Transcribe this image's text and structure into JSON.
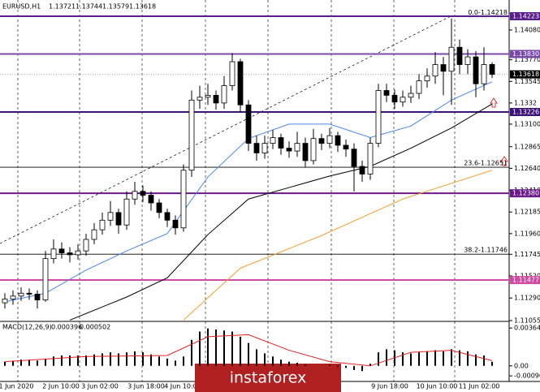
{
  "chart_data": [
    {
      "type": "candlestick",
      "title": "EURUSD,H1",
      "open": [
        1.1124,
        1.1128,
        1.1131,
        1.1134,
        1.1133,
        1.1127,
        1.117,
        1.118,
        1.1176,
        1.1174,
        1.1178,
        1.119,
        1.12,
        1.121,
        1.1218,
        1.1205,
        1.1232,
        1.124,
        1.1236,
        1.1228,
        1.1218,
        1.121,
        1.1202,
        1.1262,
        1.1335,
        1.1338,
        1.134,
        1.1332,
        1.135,
        1.1375,
        1.133,
        1.129,
        1.128,
        1.129,
        1.1296,
        1.1285,
        1.1282,
        1.129,
        1.1272,
        1.1295,
        1.129,
        1.1298,
        1.1288,
        1.1284,
        1.1266,
        1.1258,
        1.129,
        1.1345,
        1.134,
        1.1333,
        1.1338,
        1.1342,
        1.1355,
        1.136,
        1.1372,
        1.1365,
        1.139,
        1.1372,
        1.138,
        1.1352,
        1.13721
      ],
      "high": [
        1.1134,
        1.1137,
        1.114,
        1.1139,
        1.1137,
        1.1178,
        1.119,
        1.1187,
        1.1182,
        1.1185,
        1.1196,
        1.1207,
        1.1218,
        1.123,
        1.1222,
        1.124,
        1.125,
        1.1246,
        1.124,
        1.1232,
        1.1222,
        1.1215,
        1.1268,
        1.1345,
        1.135,
        1.1352,
        1.1345,
        1.136,
        1.1384,
        1.1378,
        1.1335,
        1.1298,
        1.1298,
        1.1304,
        1.13,
        1.1292,
        1.1302,
        1.1296,
        1.1305,
        1.13,
        1.1306,
        1.1302,
        1.1294,
        1.129,
        1.1272,
        1.1296,
        1.1352,
        1.1352,
        1.1346,
        1.1345,
        1.135,
        1.1362,
        1.1368,
        1.1385,
        1.138,
        1.142,
        1.1398,
        1.1388,
        1.1386,
        1.139,
        1.13744
      ],
      "low": [
        1.1118,
        1.1122,
        1.1126,
        1.1127,
        1.1118,
        1.1125,
        1.1165,
        1.117,
        1.1166,
        1.1169,
        1.1173,
        1.1185,
        1.1195,
        1.1204,
        1.1196,
        1.12,
        1.1226,
        1.1229,
        1.122,
        1.1212,
        1.1203,
        1.1195,
        1.1198,
        1.1255,
        1.1326,
        1.133,
        1.1325,
        1.1326,
        1.1345,
        1.1322,
        1.1282,
        1.1272,
        1.1274,
        1.1284,
        1.1278,
        1.1275,
        1.1276,
        1.1265,
        1.1268,
        1.1283,
        1.1285,
        1.1281,
        1.1276,
        1.124,
        1.125,
        1.1252,
        1.1286,
        1.1333,
        1.1326,
        1.1328,
        1.1332,
        1.1336,
        1.1348,
        1.1352,
        1.134,
        1.133,
        1.1362,
        1.1362,
        1.1338,
        1.1345,
        1.13579
      ],
      "close": [
        1.1128,
        1.1131,
        1.1134,
        1.1133,
        1.1127,
        1.117,
        1.118,
        1.1176,
        1.1174,
        1.1178,
        1.119,
        1.12,
        1.121,
        1.1218,
        1.1205,
        1.1232,
        1.124,
        1.1236,
        1.1228,
        1.1218,
        1.121,
        1.1202,
        1.1262,
        1.1335,
        1.1338,
        1.134,
        1.1332,
        1.135,
        1.1375,
        1.133,
        1.129,
        1.128,
        1.129,
        1.1296,
        1.1285,
        1.1282,
        1.129,
        1.1272,
        1.1295,
        1.129,
        1.1298,
        1.1288,
        1.1284,
        1.1266,
        1.1258,
        1.129,
        1.1345,
        1.134,
        1.1333,
        1.1338,
        1.1342,
        1.1355,
        1.136,
        1.1372,
        1.1365,
        1.139,
        1.1372,
        1.138,
        1.1352,
        1.1372,
        1.13618
      ],
      "ylim": [
        1.11055,
        1.14392
      ],
      "yticks": [
        {
          "value": 1.1408,
          "label": "1.14080"
        },
        {
          "value": 1.1377,
          "label": "1.13770"
        },
        1.13545,
        1.1332,
        {
          "value": 1.131,
          "label": "1.13100"
        },
        1.12865,
        {
          "value": 1.1264,
          "label": "1.12640"
        },
        {
          "value": 1.1241,
          "label": "1.12410"
        },
        1.12185,
        {
          "value": 1.1196,
          "label": "1.11960"
        },
        1.11745,
        {
          "value": 1.1152,
          "label": "1.11520"
        },
        {
          "value": 1.1129,
          "label": "1.11290"
        },
        1.11055
      ],
      "levels": [
        {
          "value": 1.14223,
          "color": "#5a1e8c"
        },
        {
          "value": 1.1383,
          "label": "1.13830",
          "color": "#7a4aa8"
        },
        {
          "value": 1.13226,
          "color": "#3c1478"
        },
        {
          "value": 1.1238,
          "label": "1.12380",
          "color": "#6a1a8a"
        },
        {
          "value": 1.11477,
          "color": "#d04aa0"
        }
      ],
      "fib": [
        {
          "value": 1.14218,
          "label": "0.0-1.14218"
        },
        {
          "value": 1.12651,
          "label": "23.6-1.12651"
        },
        {
          "value": 1.11746,
          "label": "38.2-1.11746"
        }
      ],
      "current_price": 1.13618,
      "moving_averages": [
        {
          "color": "#4a86e8",
          "x": [
            0,
            5,
            10,
            15,
            20,
            25,
            30,
            35,
            40,
            45,
            50,
            55,
            60
          ],
          "values": [
            1.1125,
            1.1134,
            1.1158,
            1.1178,
            1.1196,
            1.1255,
            1.1295,
            1.131,
            1.131,
            1.1296,
            1.1308,
            1.1335,
            1.1354
          ]
        },
        {
          "color": "#000000",
          "x": [
            8,
            15,
            20,
            25,
            30,
            35,
            40,
            45,
            50,
            55,
            60
          ],
          "values": [
            1.1106,
            1.113,
            1.115,
            1.1195,
            1.1232,
            1.1244,
            1.1256,
            1.1266,
            1.1285,
            1.1306,
            1.1331
          ]
        },
        {
          "color": "#f5a030",
          "x": [
            22,
            29,
            39,
            49,
            60
          ],
          "values": [
            1.1106,
            1.116,
            1.1194,
            1.1232,
            1.1262
          ]
        }
      ],
      "x_labels": [
        "1 Jun 2020",
        "2 Jun 10:00",
        "3 Jun 02:00",
        "3 Jun 18:00",
        "4 Jun 10:00",
        "9 Jun 18:00",
        "10 Jun 10:00",
        "11 Jun 02:00"
      ],
      "watermark": "instaforex"
    },
    {
      "type": "macd",
      "title": "MACD(12,26,9)",
      "color": "#000000",
      "values": [
        0.0004,
        0.0005,
        0.0006,
        0.0006,
        0.0005,
        0.0007,
        0.0009,
        0.001,
        0.001,
        0.001,
        0.001,
        0.0011,
        0.0012,
        0.0013,
        0.0012,
        0.0013,
        0.0014,
        0.0013,
        0.0011,
        0.0009,
        0.0007,
        0.0005,
        0.0009,
        0.0025,
        0.0033,
        0.0036,
        0.0035,
        0.0034,
        0.0033,
        0.0028,
        0.0022,
        0.0016,
        0.0012,
        0.0009,
        0.0006,
        0.0004,
        0.0003,
        0.0001,
        0,
        0,
        0.0001,
        -0.0001,
        -0.0002,
        -0.0004,
        -0.0005,
        0.0002,
        0.0013,
        0.0016,
        0.0015,
        0.0013,
        0.0012,
        0.0013,
        0.0014,
        0.0015,
        0.0014,
        0.0016,
        0.0015,
        0.0014,
        0.0011,
        0.001,
        0.000396
      ],
      "signal": {
        "color": "#e02020",
        "x": [
          0,
          10,
          20,
          25,
          30,
          35,
          40,
          45,
          50,
          55,
          60
        ],
        "values": [
          0.0004,
          0.0009,
          0.001,
          0.0028,
          0.003,
          0.0015,
          0.0004,
          0,
          0.0013,
          0.0015,
          0.000502
        ]
      },
      "ylim": [
        -0.0015,
        0.0042
      ],
      "yticks": [
        0.003641,
        {
          "value": 0,
          "label": "0.00"
        },
        -0.000962
      ]
    }
  ]
}
